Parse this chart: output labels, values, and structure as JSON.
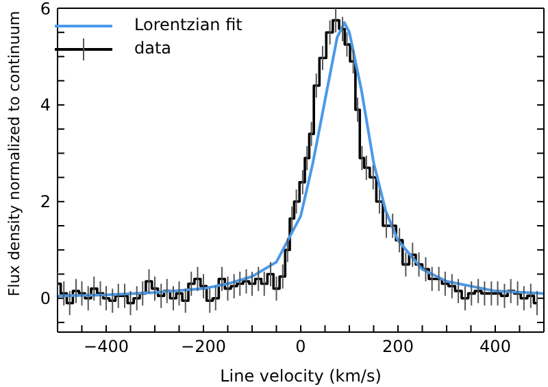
{
  "chart_data": {
    "type": "step",
    "xlabel": "Line velocity (km/s)",
    "ylabel": "Flux density normalized to continuum",
    "xlim": [
      -500,
      500
    ],
    "ylim": [
      -0.7,
      6
    ],
    "xticks": [
      {
        "value": -450,
        "label": null
      },
      -400,
      {
        "value": -350,
        "label": null
      },
      {
        "value": -300,
        "label": null
      },
      {
        "value": -250,
        "label": null
      },
      -200,
      {
        "value": -150,
        "label": null
      },
      {
        "value": -100,
        "label": null
      },
      {
        "value": -50,
        "label": null
      },
      0,
      {
        "value": 50,
        "label": null
      },
      {
        "value": 100,
        "label": null
      },
      {
        "value": 150,
        "label": null
      },
      200,
      {
        "value": 250,
        "label": null
      },
      {
        "value": 300,
        "label": null
      },
      {
        "value": 350,
        "label": null
      },
      400,
      {
        "value": 450,
        "label": null
      }
    ],
    "yticks": [
      {
        "value": -0.5,
        "label": null
      },
      0,
      {
        "value": 0.5,
        "label": null
      },
      {
        "value": 1,
        "label": null
      },
      {
        "value": 1.5,
        "label": null
      },
      2,
      {
        "value": 2.5,
        "label": null
      },
      {
        "value": 3,
        "label": null
      },
      {
        "value": 3.5,
        "label": null
      },
      4,
      {
        "value": 4.5,
        "label": null
      },
      {
        "value": 5,
        "label": null
      },
      {
        "value": 5.5,
        "label": null
      },
      6
    ],
    "grid": false,
    "legend": "top left",
    "marker": "none",
    "line_style": "solid",
    "series": [
      {
        "name": "Lorentzian fit",
        "type": "line",
        "color": "#4a9ae8",
        "x": [
          -500,
          -400,
          -300,
          -200,
          -150,
          -100,
          -50,
          0,
          25,
          50,
          75,
          90,
          100,
          125,
          150,
          175,
          200,
          250,
          300,
          400,
          500
        ],
        "values": [
          0.05,
          0.07,
          0.12,
          0.2,
          0.3,
          0.45,
          0.75,
          1.7,
          2.8,
          4.1,
          5.4,
          5.7,
          5.5,
          4.3,
          2.8,
          1.8,
          1.2,
          0.6,
          0.35,
          0.15,
          0.1
        ]
      },
      {
        "name": "data",
        "type": "step",
        "color": "#000000",
        "x": [
          -500,
          -487,
          -475,
          -462,
          -450,
          -437,
          -425,
          -412,
          -400,
          -387,
          -375,
          -362,
          -350,
          -337,
          -325,
          -312,
          -300,
          -287,
          -275,
          -262,
          -250,
          -237,
          -225,
          -212,
          -200,
          -187,
          -175,
          -162,
          -150,
          -137,
          -125,
          -112,
          -100,
          -87,
          -75,
          -62,
          -50,
          -37,
          -27,
          -18,
          -9,
          4,
          13,
          22,
          32,
          45,
          60,
          72,
          86,
          95,
          108,
          117,
          126,
          135,
          149,
          162,
          176,
          189,
          203,
          216,
          230,
          243,
          257,
          270,
          284,
          297,
          311,
          324,
          338,
          351,
          365,
          378,
          392,
          405,
          419,
          432,
          446,
          459,
          473,
          486
        ],
        "values": [
          0.3,
          0.1,
          -0.1,
          0.15,
          0.1,
          0.0,
          0.2,
          0.1,
          0.0,
          -0.05,
          0.05,
          0.05,
          -0.1,
          0.0,
          0.1,
          0.35,
          0.2,
          0.05,
          0.15,
          0.0,
          0.1,
          -0.05,
          0.3,
          0.4,
          0.25,
          -0.05,
          0.0,
          0.4,
          0.2,
          0.25,
          0.3,
          0.35,
          0.3,
          0.4,
          0.3,
          0.5,
          0.2,
          0.45,
          1.0,
          1.65,
          2.0,
          2.4,
          2.9,
          3.4,
          4.4,
          4.97,
          5.5,
          5.75,
          5.57,
          5.25,
          4.9,
          3.9,
          2.9,
          2.7,
          2.5,
          2.0,
          1.5,
          1.5,
          1.2,
          0.7,
          0.9,
          0.7,
          0.6,
          0.4,
          0.4,
          0.3,
          0.25,
          0.15,
          0.0,
          0.1,
          0.15,
          0.1,
          0.1,
          0.1,
          0.05,
          0.15,
          0.1,
          0.0,
          0.05,
          -0.1
        ],
        "errors": [
          0.25,
          0.25,
          0.25,
          0.25,
          0.25,
          0.25,
          0.25,
          0.25,
          0.25,
          0.25,
          0.25,
          0.25,
          0.25,
          0.25,
          0.25,
          0.25,
          0.25,
          0.25,
          0.25,
          0.25,
          0.25,
          0.25,
          0.25,
          0.25,
          0.25,
          0.25,
          0.25,
          0.25,
          0.25,
          0.25,
          0.25,
          0.25,
          0.25,
          0.25,
          0.25,
          0.25,
          0.25,
          0.25,
          0.25,
          0.25,
          0.25,
          0.25,
          0.25,
          0.25,
          0.25,
          0.25,
          0.25,
          0.25,
          0.25,
          0.25,
          0.25,
          0.25,
          0.25,
          0.25,
          0.25,
          0.25,
          0.25,
          0.25,
          0.25,
          0.25,
          0.25,
          0.25,
          0.25,
          0.25,
          0.25,
          0.25,
          0.25,
          0.25,
          0.25,
          0.25,
          0.25,
          0.25,
          0.25,
          0.25,
          0.25,
          0.25,
          0.25,
          0.25,
          0.25,
          0.25
        ]
      }
    ]
  }
}
